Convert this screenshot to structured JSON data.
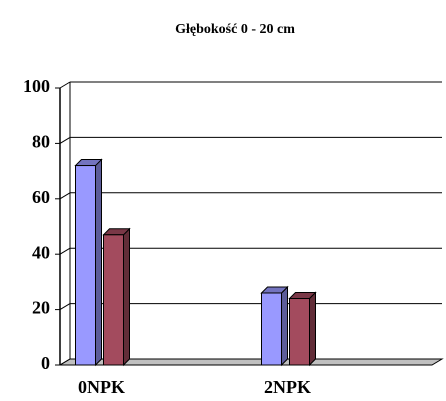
{
  "chart_data": {
    "type": "bar3d",
    "title": "Głębokość 0 - 20 cm",
    "categories": [
      "0NPK",
      null,
      "2NPK",
      null
    ],
    "series": [
      {
        "color": "#9999ff",
        "values": [
          72,
          null,
          26,
          null
        ]
      },
      {
        "color": "#a34b5e",
        "values": [
          47,
          null,
          24,
          null
        ]
      }
    ],
    "ylim": [
      0,
      100
    ],
    "yticks": [
      0,
      20,
      40,
      60,
      80,
      100
    ],
    "grid": true
  }
}
